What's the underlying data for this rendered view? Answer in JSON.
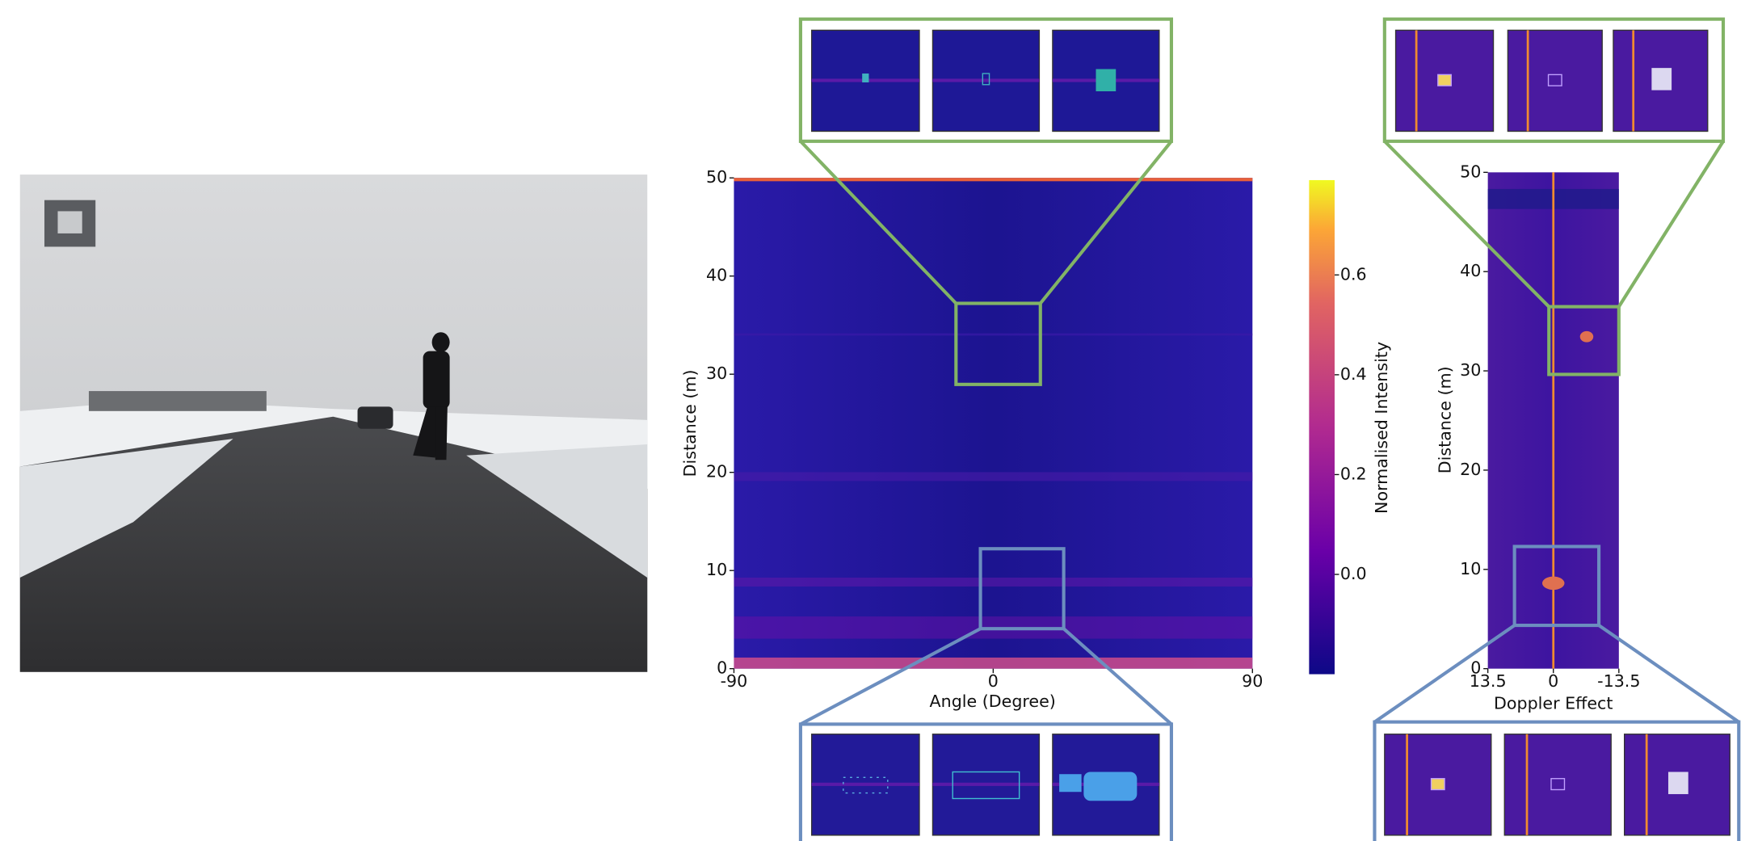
{
  "range_angle": {
    "xlabel": "Angle (Degree)",
    "ylabel": "Distance (m)",
    "xlim": [
      -90,
      90
    ],
    "ylim": [
      0,
      50
    ],
    "xticks": [
      -90,
      0,
      90
    ],
    "yticks": [
      0,
      10,
      20,
      30,
      40,
      50
    ]
  },
  "colorbar": {
    "label": "Normalised Intensity",
    "lim": [
      -0.2,
      0.79
    ],
    "ticks": [
      {
        "value": 0,
        "label": "0.0"
      },
      0.2,
      0.4,
      0.6
    ]
  },
  "range_doppler": {
    "xlabel": "Doppler Effect",
    "ylabel": "Distance (m)",
    "xlim": [
      13.5,
      -13.5
    ],
    "ylim": [
      0,
      50
    ],
    "xticks": [
      13.5,
      0,
      -13.5
    ],
    "yticks": [
      0,
      10,
      20,
      30,
      40,
      50
    ]
  }
}
